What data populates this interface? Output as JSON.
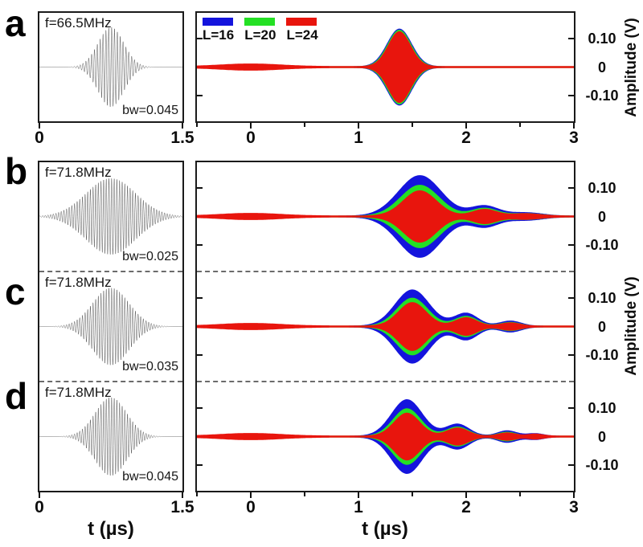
{
  "rows": [
    {
      "letter": "a",
      "f_label": "f=66.5MHz",
      "bw_label": "bw=0.045"
    },
    {
      "letter": "b",
      "f_label": "f=71.8MHz",
      "bw_label": "bw=0.025"
    },
    {
      "letter": "c",
      "f_label": "f=71.8MHz",
      "bw_label": "bw=0.035"
    },
    {
      "letter": "d",
      "f_label": "f=71.8MHz",
      "bw_label": "bw=0.045"
    }
  ],
  "legend": {
    "items": [
      {
        "label": "L=16",
        "color": "#1414dd"
      },
      {
        "label": "L=20",
        "color": "#24e024"
      },
      {
        "label": "L=24",
        "color": "#e8150d"
      }
    ]
  },
  "axes": {
    "xlabel_left": "t  (µs)",
    "xlabel_right": "t  (µs)",
    "ylabel": "Amplitude (V)",
    "left_xtick_labels": [
      "0",
      "1.5"
    ],
    "right_xtick_labels": [
      "0",
      "1",
      "2",
      "3"
    ],
    "ytick_labels": [
      "0.10",
      "0",
      "-0.10"
    ]
  },
  "colors": {
    "frame": "#1a1a1a",
    "dashed_separator": "#6b6b6b",
    "pulse_wave": "#4a4a4a",
    "text": "#0d0d0d"
  },
  "chart_data": [
    {
      "row": "a",
      "pulse": {
        "type": "line",
        "title": "excitation pulse a",
        "x_range": [
          0,
          1.5
        ],
        "xticks": [
          0,
          1.5
        ],
        "xlabel": "t (µs)",
        "annotations": {
          "f": "f=66.5MHz",
          "bw": "bw=0.045"
        },
        "center": 0.75,
        "sigma": 0.135,
        "peak": 0.78,
        "cycles": 50
      },
      "echo": {
        "type": "envelope-line",
        "title": "echo a",
        "x_range": [
          -0.5,
          3
        ],
        "xticks": [
          0,
          1,
          2,
          3
        ],
        "minor_xticks": [
          -0.5,
          0.5,
          1.5,
          2.5
        ],
        "ylim": [
          -0.19,
          0.19
        ],
        "yticks": [
          0.1,
          0,
          -0.1
        ],
        "series": [
          {
            "name": "L=16",
            "color": "#1414dd",
            "base": 0.0028,
            "lobes": [
              [
                1.38,
                0.115,
                0.132
              ],
              [
                0.2,
                0.2,
                0.005
              ]
            ]
          },
          {
            "name": "L=20",
            "color": "#24e024",
            "base": 0.003,
            "lobes": [
              [
                1.38,
                0.11,
                0.128
              ],
              [
                0.12,
                0.22,
                0.006
              ]
            ]
          },
          {
            "name": "L=24",
            "color": "#e8150d",
            "base": 0.0035,
            "lobes": [
              [
                1.38,
                0.105,
                0.122
              ],
              [
                0.0,
                0.28,
                0.009
              ]
            ]
          }
        ]
      }
    },
    {
      "row": "b",
      "pulse": {
        "type": "line",
        "title": "excitation pulse b",
        "x_range": [
          0,
          1.5
        ],
        "xticks": [
          0,
          1.5
        ],
        "xlabel": "t (µs)",
        "annotations": {
          "f": "f=71.8MHz",
          "bw": "bw=0.025"
        },
        "center": 0.75,
        "sigma": 0.26,
        "peak": 0.75,
        "cycles": 54
      },
      "echo": {
        "type": "envelope-line",
        "title": "echo b",
        "x_range": [
          -0.5,
          3
        ],
        "xticks": [
          0,
          1,
          2,
          3
        ],
        "minor_xticks": [
          -0.5,
          0.5,
          1.5,
          2.5
        ],
        "ylim": [
          -0.19,
          0.19
        ],
        "yticks": [
          0.1,
          0,
          -0.1
        ],
        "series": [
          {
            "name": "L=16",
            "color": "#1414dd",
            "base": 0.0028,
            "lobes": [
              [
                1.57,
                0.2,
                0.142
              ],
              [
                2.17,
                0.13,
                0.035
              ],
              [
                2.55,
                0.16,
                0.012
              ],
              [
                0.2,
                0.2,
                0.005
              ]
            ]
          },
          {
            "name": "L=20",
            "color": "#24e024",
            "base": 0.003,
            "lobes": [
              [
                1.57,
                0.18,
                0.108
              ],
              [
                2.17,
                0.12,
                0.027
              ],
              [
                2.55,
                0.15,
                0.009
              ],
              [
                0.12,
                0.22,
                0.006
              ]
            ]
          },
          {
            "name": "L=24",
            "color": "#e8150d",
            "base": 0.0035,
            "lobes": [
              [
                1.57,
                0.155,
                0.088
              ],
              [
                2.17,
                0.11,
                0.023
              ],
              [
                2.55,
                0.14,
                0.008
              ],
              [
                0.0,
                0.28,
                0.009
              ]
            ]
          }
        ]
      }
    },
    {
      "row": "c",
      "pulse": {
        "type": "line",
        "title": "excitation pulse c",
        "x_range": [
          0,
          1.5
        ],
        "xticks": [
          0,
          1.5
        ],
        "xlabel": "t (µs)",
        "annotations": {
          "f": "f=71.8MHz",
          "bw": "bw=0.035"
        },
        "center": 0.75,
        "sigma": 0.19,
        "peak": 0.76,
        "cycles": 54
      },
      "echo": {
        "type": "envelope-line",
        "title": "echo c",
        "x_range": [
          -0.5,
          3
        ],
        "xticks": [
          0,
          1,
          2,
          3
        ],
        "minor_xticks": [
          -0.5,
          0.5,
          1.5,
          2.5
        ],
        "ylim": [
          -0.19,
          0.19
        ],
        "yticks": [
          0.1,
          0,
          -0.1
        ],
        "series": [
          {
            "name": "L=16",
            "color": "#1414dd",
            "base": 0.0028,
            "lobes": [
              [
                1.5,
                0.16,
                0.127
              ],
              [
                2.0,
                0.11,
                0.045
              ],
              [
                2.41,
                0.1,
                0.018
              ],
              [
                0.2,
                0.2,
                0.005
              ]
            ]
          },
          {
            "name": "L=20",
            "color": "#24e024",
            "base": 0.003,
            "lobes": [
              [
                1.5,
                0.145,
                0.098
              ],
              [
                2.0,
                0.105,
                0.034
              ],
              [
                2.41,
                0.095,
                0.013
              ],
              [
                0.12,
                0.22,
                0.006
              ]
            ]
          },
          {
            "name": "L=24",
            "color": "#e8150d",
            "base": 0.0035,
            "lobes": [
              [
                1.5,
                0.13,
                0.082
              ],
              [
                2.0,
                0.1,
                0.029
              ],
              [
                2.41,
                0.09,
                0.011
              ],
              [
                0.0,
                0.28,
                0.009
              ]
            ]
          }
        ]
      }
    },
    {
      "row": "d",
      "pulse": {
        "type": "line",
        "title": "excitation pulse d",
        "x_range": [
          0,
          1.5
        ],
        "xticks": [
          0,
          1.5
        ],
        "xlabel": "t (µs)",
        "annotations": {
          "f": "f=71.8MHz",
          "bw": "bw=0.045"
        },
        "center": 0.75,
        "sigma": 0.165,
        "peak": 0.77,
        "cycles": 54
      },
      "echo": {
        "type": "envelope-line",
        "title": "echo d",
        "x_range": [
          -0.5,
          3
        ],
        "xticks": [
          0,
          1,
          2,
          3
        ],
        "minor_xticks": [
          -0.5,
          0.5,
          1.5,
          2.5
        ],
        "ylim": [
          -0.19,
          0.19
        ],
        "yticks": [
          0.1,
          0,
          -0.1
        ],
        "series": [
          {
            "name": "L=16",
            "color": "#1414dd",
            "base": 0.0028,
            "lobes": [
              [
                1.45,
                0.145,
                0.128
              ],
              [
                1.92,
                0.11,
                0.042
              ],
              [
                2.38,
                0.09,
                0.019
              ],
              [
                2.64,
                0.08,
                0.009
              ],
              [
                0.2,
                0.2,
                0.005
              ]
            ]
          },
          {
            "name": "L=20",
            "color": "#24e024",
            "base": 0.003,
            "lobes": [
              [
                1.45,
                0.13,
                0.096
              ],
              [
                1.92,
                0.105,
                0.032
              ],
              [
                2.38,
                0.085,
                0.014
              ],
              [
                0.12,
                0.22,
                0.006
              ]
            ]
          },
          {
            "name": "L=24",
            "color": "#e8150d",
            "base": 0.0035,
            "lobes": [
              [
                1.45,
                0.12,
                0.08
              ],
              [
                1.92,
                0.1,
                0.028
              ],
              [
                2.38,
                0.08,
                0.011
              ],
              [
                2.64,
                0.075,
                0.007
              ],
              [
                0.0,
                0.28,
                0.009
              ]
            ]
          }
        ]
      }
    }
  ]
}
